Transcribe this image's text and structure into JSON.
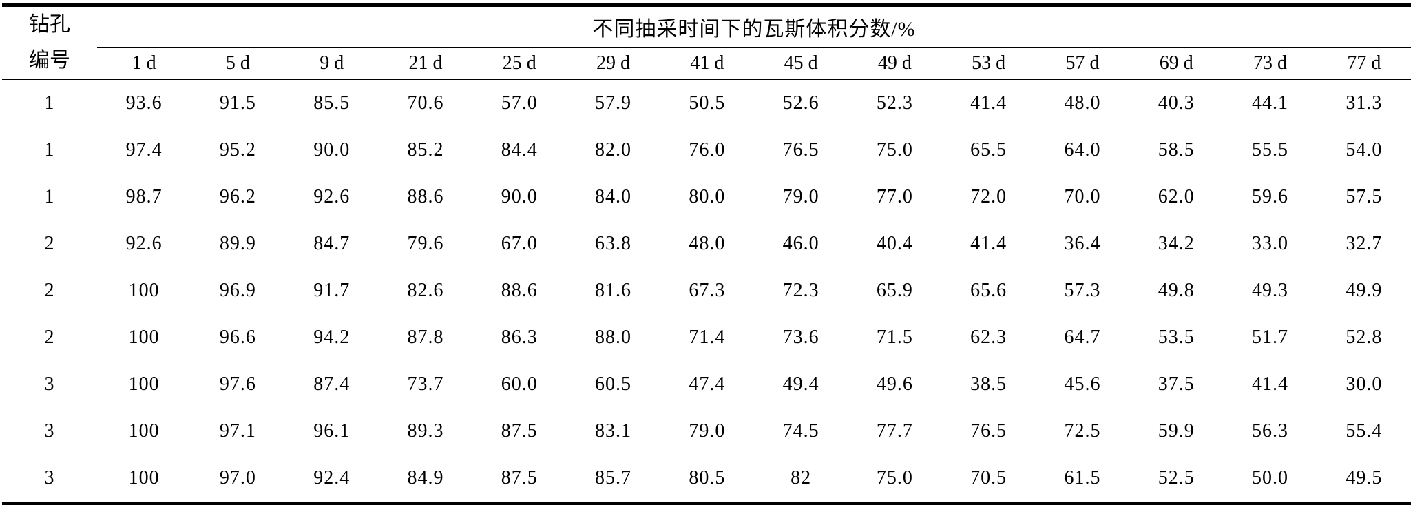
{
  "table": {
    "hole_header_line1": "钻孔",
    "hole_header_line2": "编号",
    "main_header": "不同抽采时间下的瓦斯体积分数/%",
    "day_headers": [
      "1 d",
      "5 d",
      "9 d",
      "21 d",
      "25 d",
      "29 d",
      "41 d",
      "45 d",
      "49 d",
      "53 d",
      "57 d",
      "69 d",
      "73 d",
      "77 d"
    ],
    "rows": [
      {
        "hole": "1",
        "values": [
          "93.6",
          "91.5",
          "85.5",
          "70.6",
          "57.0",
          "57.9",
          "50.5",
          "52.6",
          "52.3",
          "41.4",
          "48.0",
          "40.3",
          "44.1",
          "31.3"
        ]
      },
      {
        "hole": "1",
        "values": [
          "97.4",
          "95.2",
          "90.0",
          "85.2",
          "84.4",
          "82.0",
          "76.0",
          "76.5",
          "75.0",
          "65.5",
          "64.0",
          "58.5",
          "55.5",
          "54.0"
        ]
      },
      {
        "hole": "1",
        "values": [
          "98.7",
          "96.2",
          "92.6",
          "88.6",
          "90.0",
          "84.0",
          "80.0",
          "79.0",
          "77.0",
          "72.0",
          "70.0",
          "62.0",
          "59.6",
          "57.5"
        ]
      },
      {
        "hole": "2",
        "values": [
          "92.6",
          "89.9",
          "84.7",
          "79.6",
          "67.0",
          "63.8",
          "48.0",
          "46.0",
          "40.4",
          "41.4",
          "36.4",
          "34.2",
          "33.0",
          "32.7"
        ]
      },
      {
        "hole": "2",
        "values": [
          "100",
          "96.9",
          "91.7",
          "82.6",
          "88.6",
          "81.6",
          "67.3",
          "72.3",
          "65.9",
          "65.6",
          "57.3",
          "49.8",
          "49.3",
          "49.9"
        ]
      },
      {
        "hole": "2",
        "values": [
          "100",
          "96.6",
          "94.2",
          "87.8",
          "86.3",
          "88.0",
          "71.4",
          "73.6",
          "71.5",
          "62.3",
          "64.7",
          "53.5",
          "51.7",
          "52.8"
        ]
      },
      {
        "hole": "3",
        "values": [
          "100",
          "97.6",
          "87.4",
          "73.7",
          "60.0",
          "60.5",
          "47.4",
          "49.4",
          "49.6",
          "38.5",
          "45.6",
          "37.5",
          "41.4",
          "30.0"
        ]
      },
      {
        "hole": "3",
        "values": [
          "100",
          "97.1",
          "96.1",
          "89.3",
          "87.5",
          "83.1",
          "79.0",
          "74.5",
          "77.7",
          "76.5",
          "72.5",
          "59.9",
          "56.3",
          "55.4"
        ]
      },
      {
        "hole": "3",
        "values": [
          "100",
          "97.0",
          "92.4",
          "84.9",
          "87.5",
          "85.7",
          "80.5",
          "82",
          "75.0",
          "70.5",
          "61.5",
          "52.5",
          "50.0",
          "49.5"
        ]
      }
    ]
  },
  "chart_data": {
    "type": "table",
    "title": "不同抽采时间下的瓦斯体积分数/%",
    "row_label_header": "钻孔编号",
    "columns_days": [
      1,
      5,
      9,
      21,
      25,
      29,
      41,
      45,
      49,
      53,
      57,
      69,
      73,
      77
    ],
    "series": [
      {
        "name": "1",
        "values": [
          93.6,
          91.5,
          85.5,
          70.6,
          57.0,
          57.9,
          50.5,
          52.6,
          52.3,
          41.4,
          48.0,
          40.3,
          44.1,
          31.3
        ]
      },
      {
        "name": "1",
        "values": [
          97.4,
          95.2,
          90.0,
          85.2,
          84.4,
          82.0,
          76.0,
          76.5,
          75.0,
          65.5,
          64.0,
          58.5,
          55.5,
          54.0
        ]
      },
      {
        "name": "1",
        "values": [
          98.7,
          96.2,
          92.6,
          88.6,
          90.0,
          84.0,
          80.0,
          79.0,
          77.0,
          72.0,
          70.0,
          62.0,
          59.6,
          57.5
        ]
      },
      {
        "name": "2",
        "values": [
          92.6,
          89.9,
          84.7,
          79.6,
          67.0,
          63.8,
          48.0,
          46.0,
          40.4,
          41.4,
          36.4,
          34.2,
          33.0,
          32.7
        ]
      },
      {
        "name": "2",
        "values": [
          100,
          96.9,
          91.7,
          82.6,
          88.6,
          81.6,
          67.3,
          72.3,
          65.9,
          65.6,
          57.3,
          49.8,
          49.3,
          49.9
        ]
      },
      {
        "name": "2",
        "values": [
          100,
          96.6,
          94.2,
          87.8,
          86.3,
          88.0,
          71.4,
          73.6,
          71.5,
          62.3,
          64.7,
          53.5,
          51.7,
          52.8
        ]
      },
      {
        "name": "3",
        "values": [
          100,
          97.6,
          87.4,
          73.7,
          60.0,
          60.5,
          47.4,
          49.4,
          49.6,
          38.5,
          45.6,
          37.5,
          41.4,
          30.0
        ]
      },
      {
        "name": "3",
        "values": [
          100,
          97.1,
          96.1,
          89.3,
          87.5,
          83.1,
          79.0,
          74.5,
          77.7,
          76.5,
          72.5,
          59.9,
          56.3,
          55.4
        ]
      },
      {
        "name": "3",
        "values": [
          100,
          97.0,
          92.4,
          84.9,
          87.5,
          85.7,
          80.5,
          82,
          75.0,
          70.5,
          61.5,
          52.5,
          50.0,
          49.5
        ]
      }
    ]
  }
}
